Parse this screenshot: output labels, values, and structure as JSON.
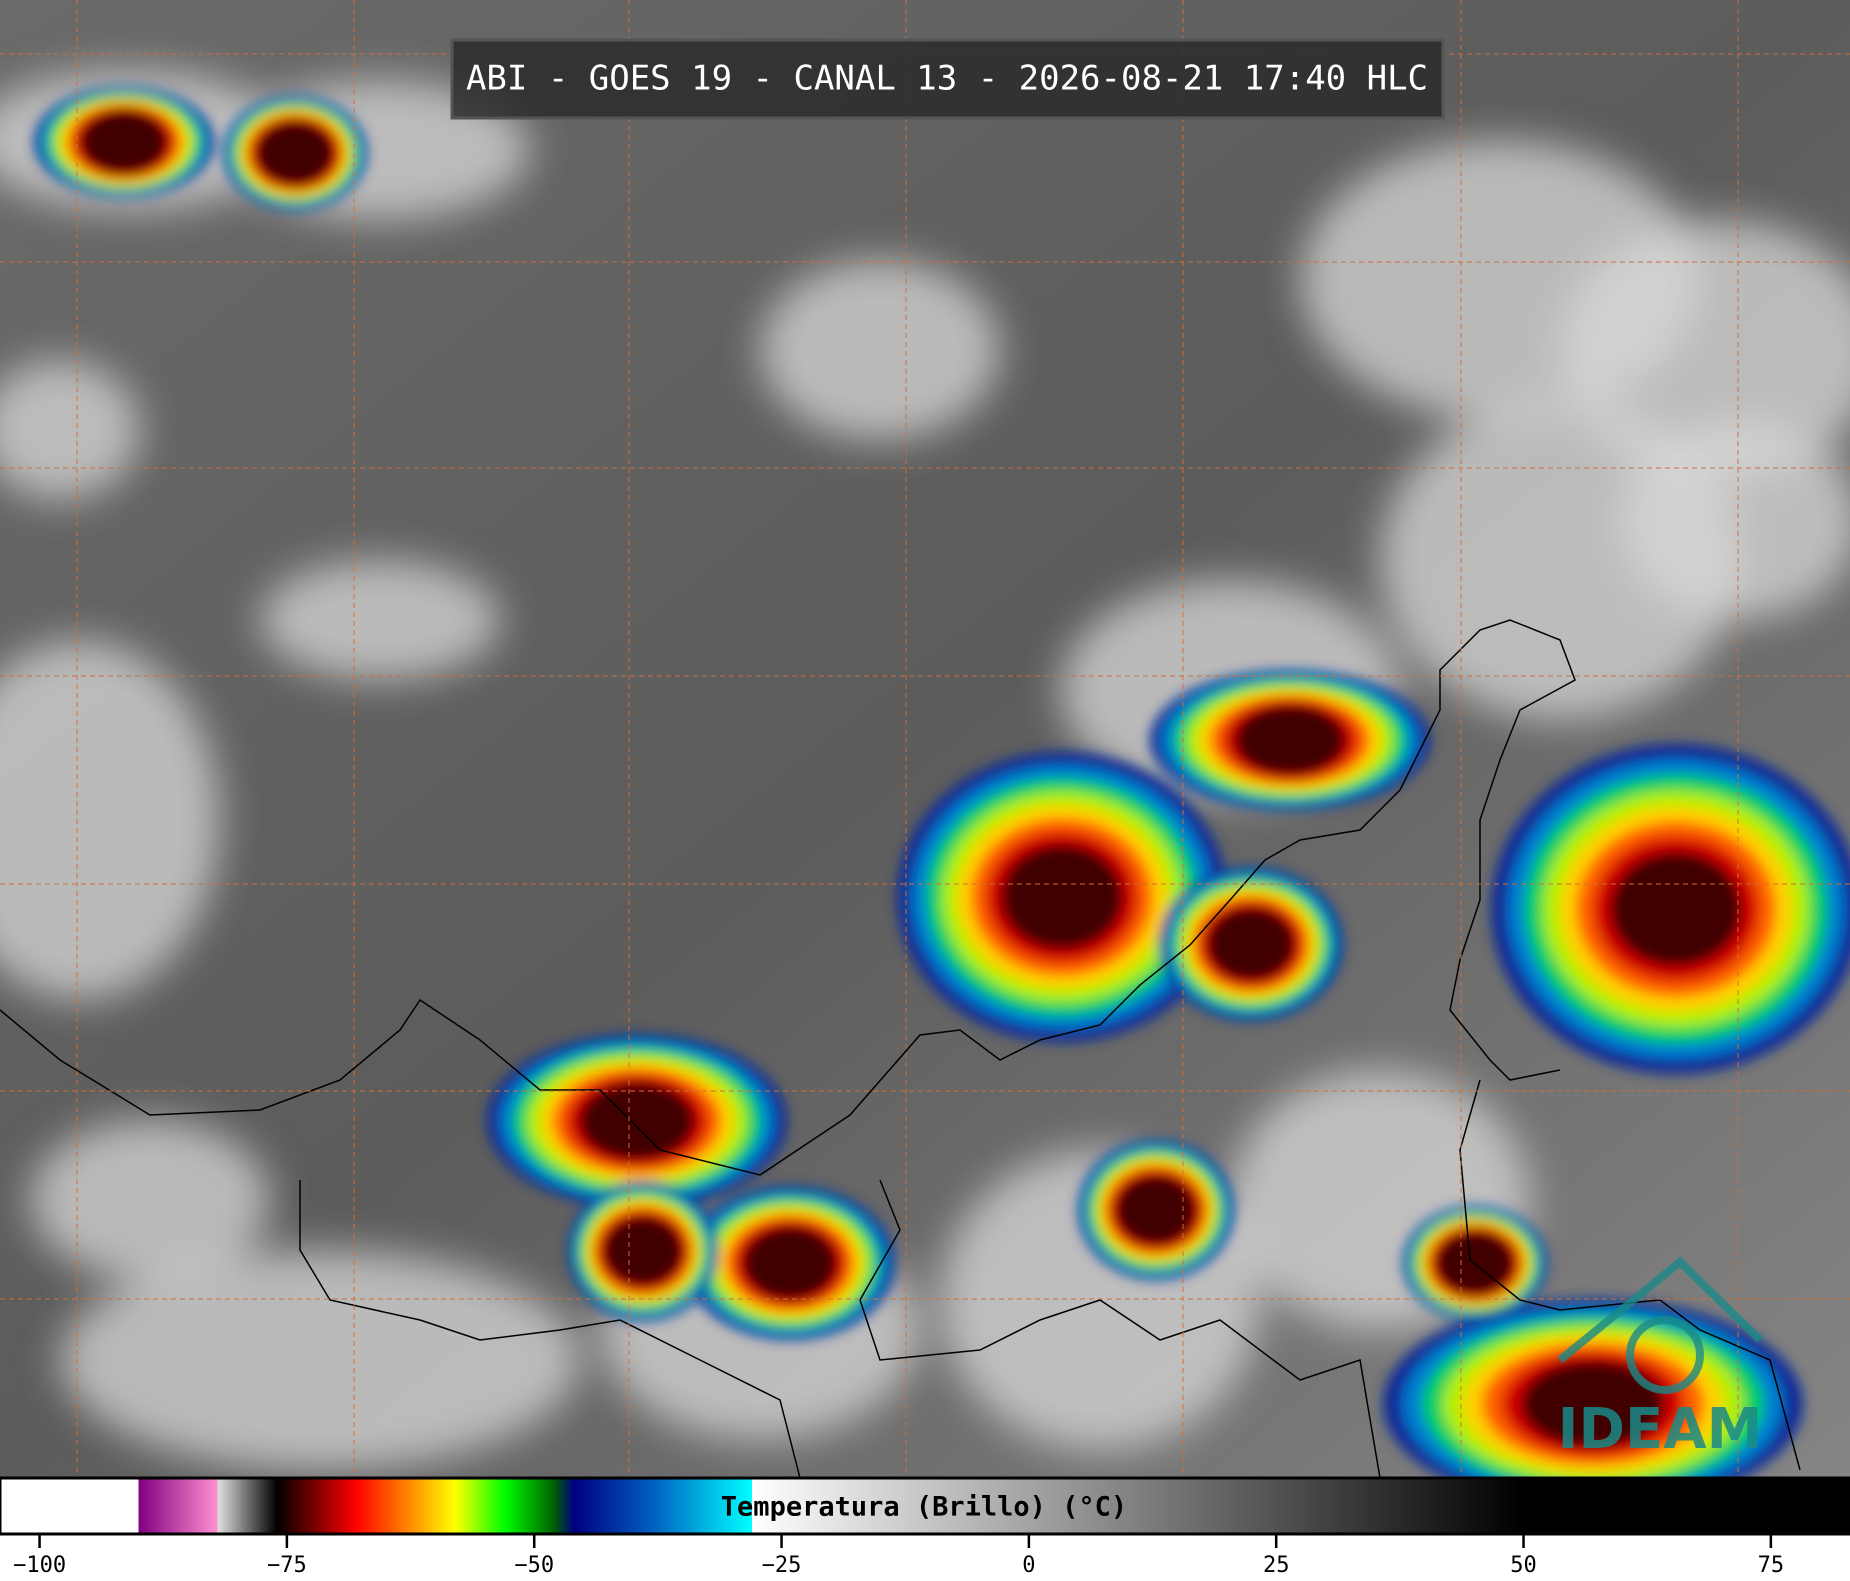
{
  "title": "ABI - GOES 19 - CANAL 13 - 2026-08-21 17:40 HLC",
  "logo": "IDEAM",
  "colorbar": {
    "label": "Temperatura (Brillo) (°C)",
    "xlim": [
      -104,
      83
    ],
    "xticks": [
      {
        "value": -100,
        "label": "−100"
      },
      {
        "value": -75,
        "label": "−75"
      },
      {
        "value": -50,
        "label": "−50"
      },
      {
        "value": -25,
        "label": "−25"
      },
      0,
      25,
      50,
      75
    ],
    "colormap": [
      {
        "value": -104,
        "color": "#ffffff"
      },
      {
        "value": -90,
        "color": "#ffffff"
      },
      {
        "value": -90,
        "color": "#800080"
      },
      {
        "value": -82,
        "color": "#ff90d0"
      },
      {
        "value": -82,
        "color": "#e0e0e0"
      },
      {
        "value": -76,
        "color": "#000000"
      },
      {
        "value": -73,
        "color": "#600000"
      },
      {
        "value": -68,
        "color": "#ff0000"
      },
      {
        "value": -63,
        "color": "#ff8000"
      },
      {
        "value": -58,
        "color": "#ffff00"
      },
      {
        "value": -53,
        "color": "#00ff00"
      },
      {
        "value": -48,
        "color": "#006000"
      },
      {
        "value": -46,
        "color": "#000080"
      },
      {
        "value": -38,
        "color": "#0060c0"
      },
      {
        "value": -28,
        "color": "#00ffff"
      },
      {
        "value": -28,
        "color": "#ffffff"
      },
      {
        "value": 50,
        "color": "#000000"
      },
      {
        "value": 83,
        "color": "#000000"
      }
    ]
  }
}
